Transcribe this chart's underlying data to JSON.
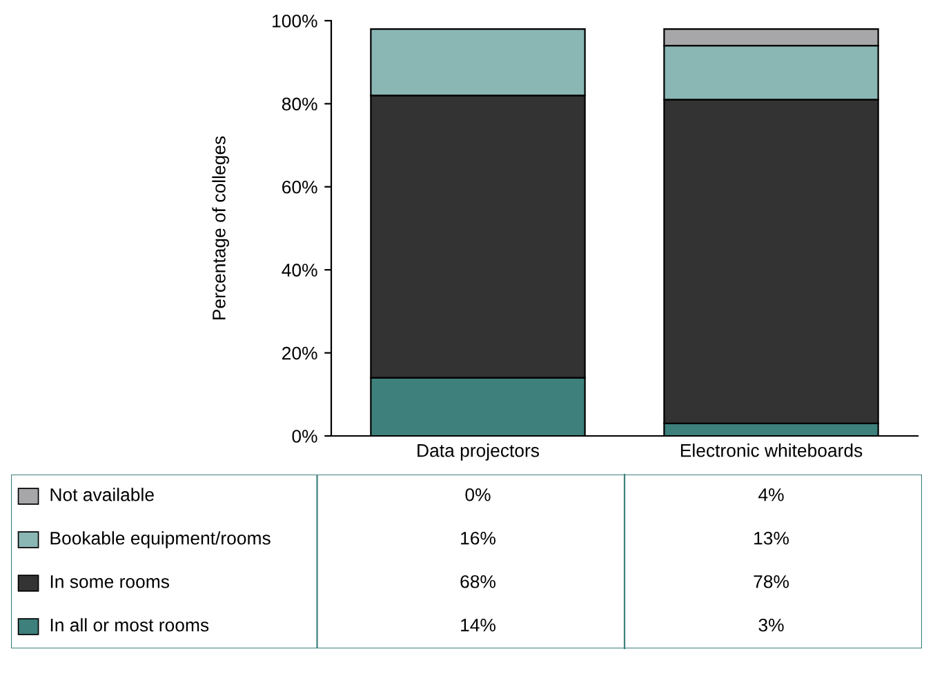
{
  "chart_data": {
    "type": "bar",
    "stacked": true,
    "ylabel": "Percentage of colleges",
    "categories": [
      "Data projectors",
      "Electronic whiteboards"
    ],
    "ylim": [
      0,
      100
    ],
    "yticks": [
      {
        "value": 0,
        "label": "0%"
      },
      {
        "value": 20,
        "label": "20%"
      },
      {
        "value": 40,
        "label": "40%"
      },
      {
        "value": 60,
        "label": "60%"
      },
      {
        "value": 80,
        "label": "80%"
      },
      {
        "value": 100,
        "label": "100%"
      }
    ],
    "grid": false,
    "legend": "bottom",
    "series": [
      {
        "name": "In all or most rooms",
        "color": "#3d807c",
        "values": [
          14,
          3
        ],
        "value_labels": [
          "14%",
          "3%"
        ]
      },
      {
        "name": "In some rooms",
        "color": "#333333",
        "values": [
          68,
          78
        ],
        "value_labels": [
          "68%",
          "78%"
        ]
      },
      {
        "name": "Bookable equipment/rooms",
        "color": "#8ab6b4",
        "values": [
          16,
          13
        ],
        "value_labels": [
          "16%",
          "13%"
        ]
      },
      {
        "name": "Not available",
        "color": "#a7a6a9",
        "values": [
          0,
          4
        ],
        "value_labels": [
          "0%",
          "4%"
        ]
      }
    ]
  }
}
